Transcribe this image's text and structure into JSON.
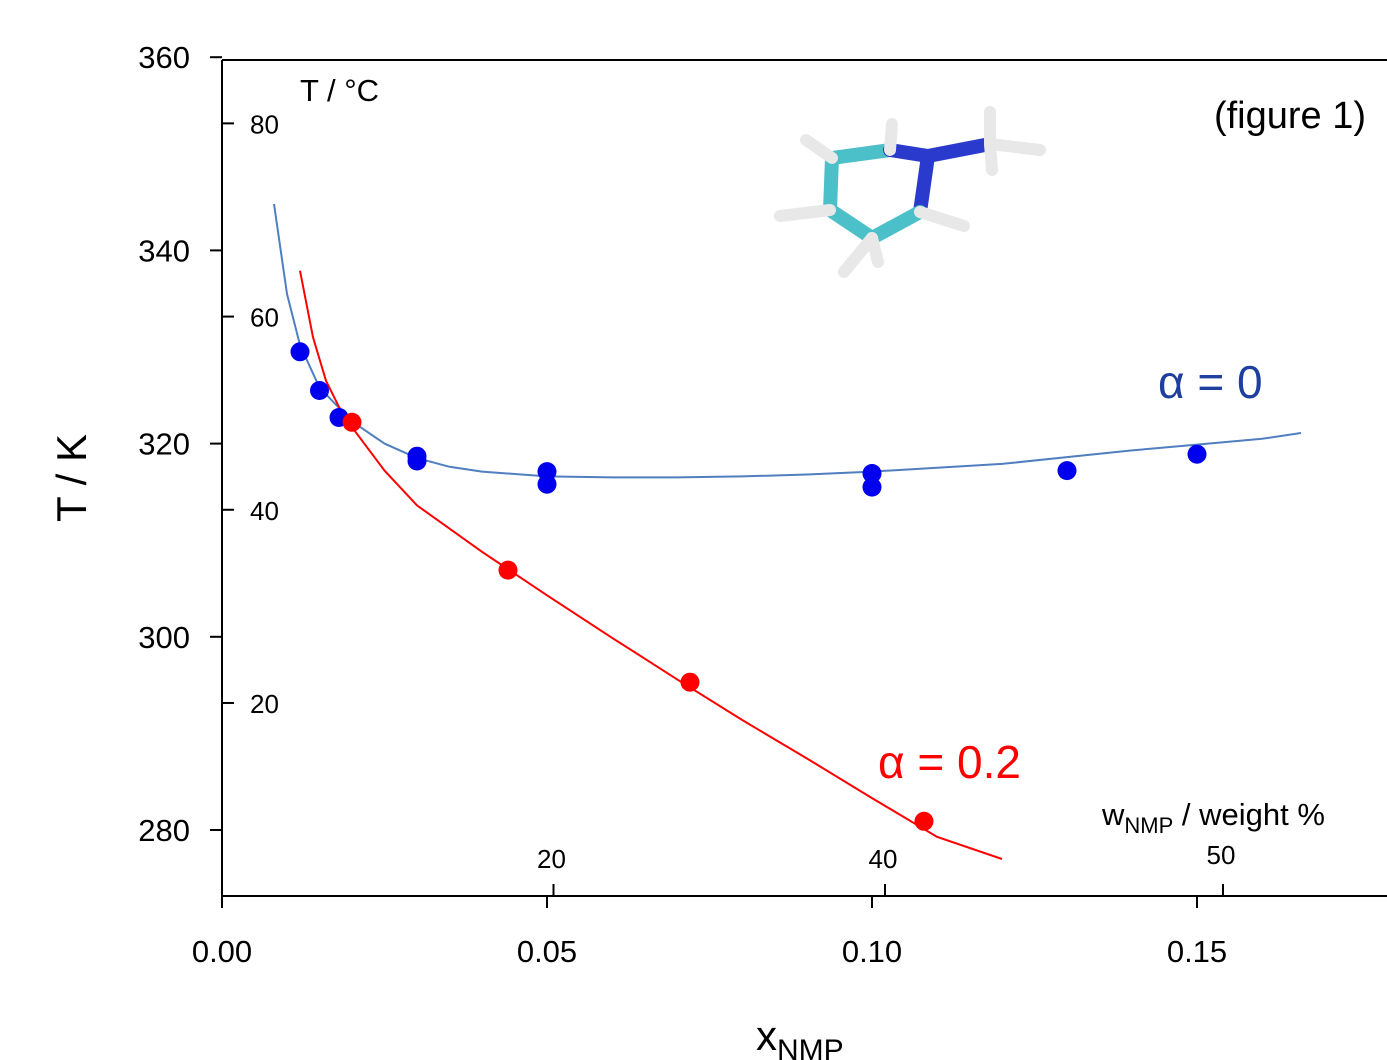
{
  "chart_data": {
    "type": "scatter",
    "xlabel": "x",
    "xlabel_sub": "NMP",
    "ylabel": "T / K",
    "xlim": [
      0.0,
      0.18
    ],
    "ylim": [
      273,
      360
    ],
    "x_ticks": [
      "0.00",
      "0.05",
      "0.10",
      "0.15"
    ],
    "y_ticks": [
      "280",
      "300",
      "320",
      "340",
      "360"
    ],
    "secondary_y": {
      "label": "T / °C",
      "ticks": [
        "20",
        "40",
        "60",
        "80"
      ]
    },
    "secondary_x": {
      "label_main": "w",
      "label_sub": "NMP",
      "label_rest": " / weight %",
      "ticks": [
        "20",
        "40",
        "50"
      ]
    },
    "annotation": "(figure 1)",
    "colors": {
      "alpha0": "#0000ee",
      "alpha0_line": "#4f7fbf",
      "alpha02": "#ff0000",
      "alpha0_label": "#1f3f9f",
      "alpha02_label": "#ff0000"
    },
    "series": [
      {
        "name": "α = 0",
        "color": "#0000ee",
        "points": [
          [
            0.012,
            329.5
          ],
          [
            0.015,
            325.5
          ],
          [
            0.018,
            322.7
          ],
          [
            0.03,
            318.7
          ],
          [
            0.03,
            318.2
          ],
          [
            0.05,
            317.1
          ],
          [
            0.05,
            315.8
          ],
          [
            0.1,
            316.9
          ],
          [
            0.1,
            315.5
          ],
          [
            0.13,
            317.2
          ],
          [
            0.15,
            318.9
          ]
        ],
        "fit": [
          [
            0.008,
            344.8
          ],
          [
            0.01,
            335.5
          ],
          [
            0.012,
            330.2
          ],
          [
            0.015,
            325.8
          ],
          [
            0.02,
            322.3
          ],
          [
            0.025,
            320.0
          ],
          [
            0.03,
            318.5
          ],
          [
            0.035,
            317.6
          ],
          [
            0.04,
            317.1
          ],
          [
            0.05,
            316.6
          ],
          [
            0.06,
            316.5
          ],
          [
            0.07,
            316.5
          ],
          [
            0.08,
            316.6
          ],
          [
            0.09,
            316.8
          ],
          [
            0.1,
            317.1
          ],
          [
            0.11,
            317.5
          ],
          [
            0.12,
            317.9
          ],
          [
            0.13,
            318.6
          ],
          [
            0.14,
            319.3
          ],
          [
            0.15,
            319.9
          ],
          [
            0.16,
            320.5
          ],
          [
            0.166,
            321.1
          ]
        ]
      },
      {
        "name": "α = 0.2",
        "color": "#ff0000",
        "points": [
          [
            0.02,
            322.2
          ],
          [
            0.044,
            306.9
          ],
          [
            0.072,
            295.3
          ],
          [
            0.108,
            280.9
          ]
        ],
        "fit": [
          [
            0.012,
            337.9
          ],
          [
            0.014,
            331.0
          ],
          [
            0.016,
            326.5
          ],
          [
            0.018,
            323.8
          ],
          [
            0.02,
            321.7
          ],
          [
            0.025,
            317.2
          ],
          [
            0.03,
            313.6
          ],
          [
            0.04,
            308.8
          ],
          [
            0.05,
            304.3
          ],
          [
            0.06,
            299.9
          ],
          [
            0.07,
            295.6
          ],
          [
            0.08,
            291.4
          ],
          [
            0.09,
            287.4
          ],
          [
            0.1,
            283.3
          ],
          [
            0.11,
            279.3
          ],
          [
            0.12,
            277.0
          ]
        ]
      }
    ]
  }
}
